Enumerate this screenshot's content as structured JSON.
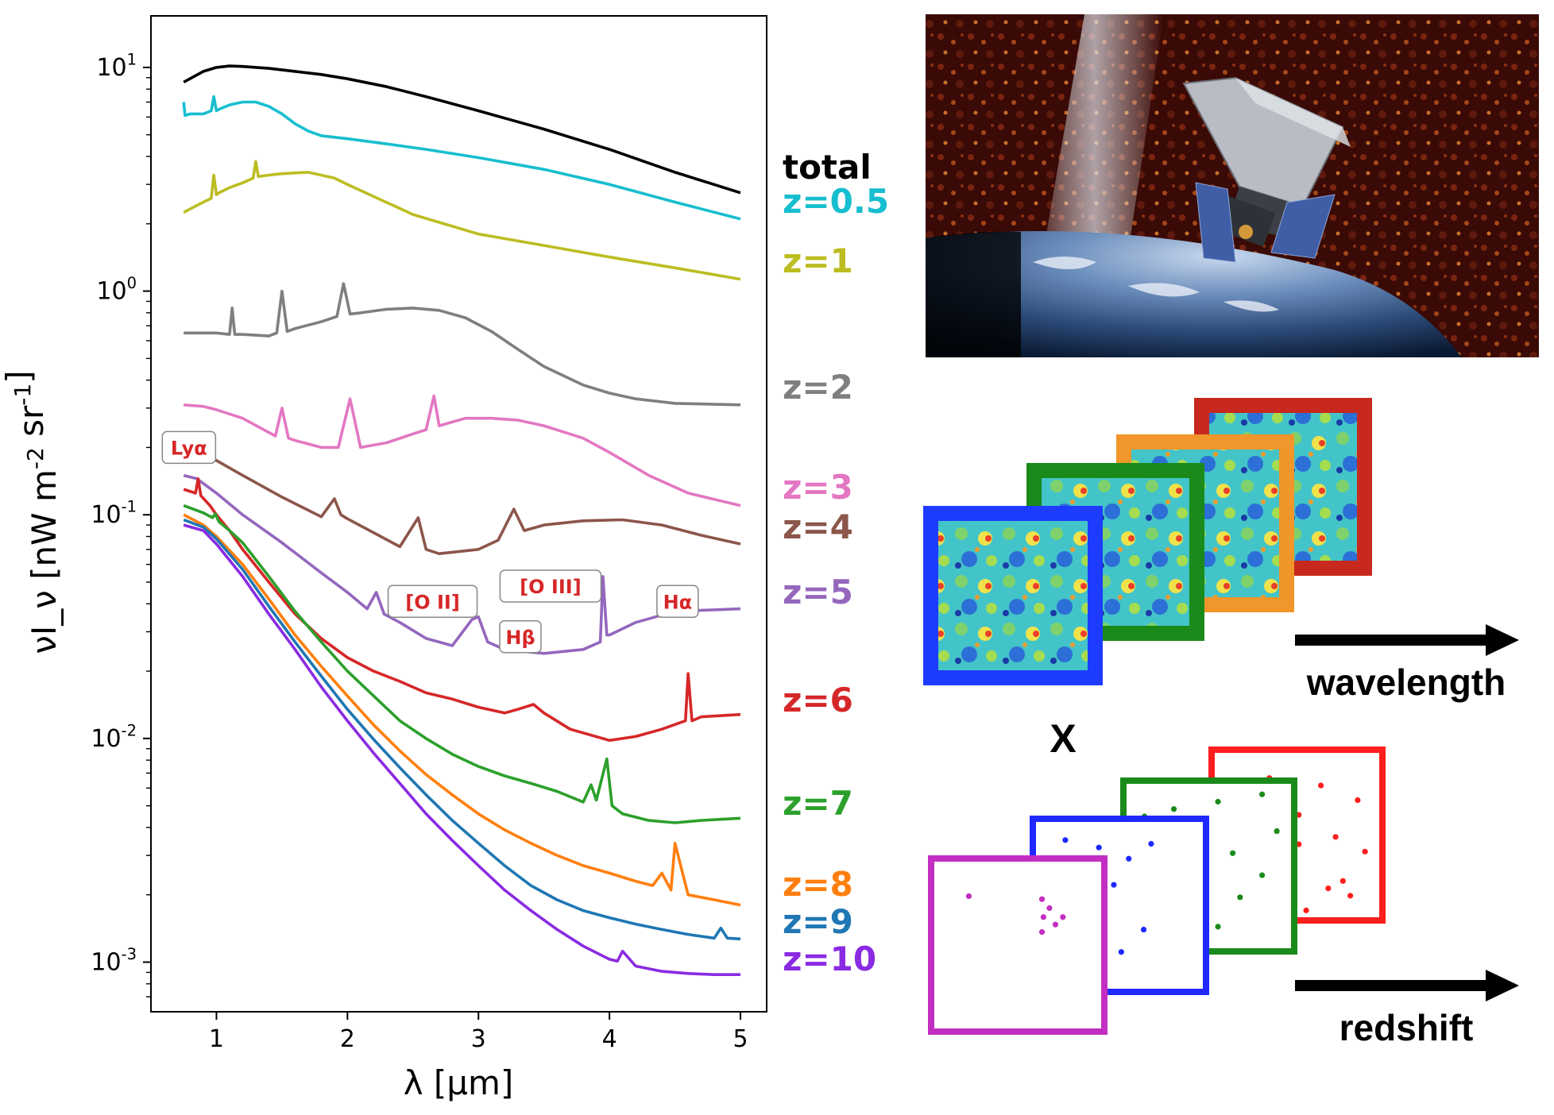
{
  "chart_data": {
    "type": "line",
    "xlabel": "λ [μm]",
    "ylabel": "νI_ν [nW m^-2 sr^-1]",
    "xlim": [
      0.5,
      5.2
    ],
    "ylim": [
      0.0006,
      17
    ],
    "yscale": "log",
    "xticks": [
      1,
      2,
      3,
      4,
      5
    ],
    "yticks": [
      {
        "value": 10,
        "label": "10^1"
      },
      {
        "value": 1,
        "label": "10^0"
      },
      {
        "value": 0.1,
        "label": "10^-1"
      },
      {
        "value": 0.01,
        "label": "10^-2"
      },
      {
        "value": 0.001,
        "label": "10^-3"
      }
    ],
    "series": [
      {
        "name": "total",
        "color": "#000000",
        "x": [
          0.75,
          0.9,
          1.0,
          1.1,
          1.2,
          1.4,
          1.6,
          1.8,
          2.0,
          2.3,
          2.6,
          3.0,
          3.5,
          4.0,
          4.5,
          5.0
        ],
        "y": [
          8.6,
          9.6,
          10.0,
          10.15,
          10.1,
          9.9,
          9.6,
          9.3,
          8.9,
          8.2,
          7.4,
          6.4,
          5.3,
          4.3,
          3.4,
          2.75
        ]
      },
      {
        "name": "z=0.5",
        "color": "#17becf",
        "x": [
          0.75,
          0.76,
          0.8,
          0.9,
          0.96,
          0.98,
          1.0,
          1.02,
          1.1,
          1.2,
          1.3,
          1.4,
          1.5,
          1.6,
          1.7,
          1.8,
          2.0,
          2.3,
          2.6,
          3.0,
          3.5,
          4.0,
          4.5,
          5.0
        ],
        "y": [
          7.0,
          6.1,
          6.2,
          6.2,
          6.4,
          7.4,
          6.4,
          6.5,
          6.8,
          7.0,
          7.0,
          6.7,
          6.2,
          5.6,
          5.2,
          4.95,
          4.8,
          4.55,
          4.3,
          3.95,
          3.5,
          3.0,
          2.5,
          2.1
        ]
      },
      {
        "name": "z=1",
        "color": "#bcbd22",
        "x": [
          0.75,
          0.9,
          0.96,
          0.98,
          1.0,
          1.02,
          1.1,
          1.2,
          1.28,
          1.3,
          1.32,
          1.4,
          1.5,
          1.7,
          1.9,
          2.0,
          2.2,
          2.5,
          3.0,
          3.5,
          4.0,
          4.5,
          5.0
        ],
        "y": [
          2.25,
          2.5,
          2.6,
          3.3,
          2.7,
          2.75,
          2.9,
          3.05,
          3.2,
          3.8,
          3.25,
          3.3,
          3.35,
          3.4,
          3.2,
          3.0,
          2.65,
          2.2,
          1.8,
          1.6,
          1.42,
          1.27,
          1.13
        ]
      },
      {
        "name": "z=2",
        "color": "#7f7f7f",
        "x": [
          0.75,
          1.0,
          1.1,
          1.12,
          1.14,
          1.2,
          1.4,
          1.46,
          1.5,
          1.54,
          1.6,
          1.8,
          1.92,
          1.97,
          2.02,
          2.1,
          2.3,
          2.5,
          2.7,
          2.9,
          3.1,
          3.3,
          3.5,
          3.8,
          4.0,
          4.2,
          4.5,
          5.0
        ],
        "y": [
          0.65,
          0.65,
          0.64,
          0.84,
          0.64,
          0.64,
          0.63,
          0.65,
          1.0,
          0.66,
          0.68,
          0.73,
          0.77,
          1.08,
          0.79,
          0.8,
          0.83,
          0.84,
          0.82,
          0.76,
          0.66,
          0.55,
          0.46,
          0.38,
          0.35,
          0.33,
          0.315,
          0.31
        ]
      },
      {
        "name": "z=3",
        "color": "#e377c2",
        "x": [
          0.75,
          0.9,
          1.0,
          1.2,
          1.45,
          1.5,
          1.55,
          1.6,
          1.8,
          1.93,
          2.02,
          2.1,
          2.3,
          2.5,
          2.6,
          2.66,
          2.7,
          2.9,
          3.1,
          3.3,
          3.5,
          3.8,
          4.0,
          4.3,
          4.6,
          5.0
        ],
        "y": [
          0.31,
          0.305,
          0.295,
          0.27,
          0.225,
          0.3,
          0.22,
          0.215,
          0.2,
          0.2,
          0.33,
          0.2,
          0.21,
          0.23,
          0.24,
          0.34,
          0.25,
          0.27,
          0.27,
          0.265,
          0.25,
          0.22,
          0.19,
          0.15,
          0.125,
          0.11
        ]
      },
      {
        "name": "z=4",
        "color": "#8c564b",
        "x": [
          0.75,
          0.85,
          1.0,
          1.2,
          1.5,
          1.8,
          1.9,
          1.95,
          2.0,
          2.4,
          2.54,
          2.6,
          2.7,
          3.0,
          3.15,
          3.27,
          3.35,
          3.5,
          3.8,
          4.1,
          4.4,
          4.7,
          5.0
        ],
        "y": [
          0.2,
          0.19,
          0.175,
          0.15,
          0.12,
          0.098,
          0.118,
          0.1,
          0.096,
          0.072,
          0.097,
          0.07,
          0.067,
          0.07,
          0.077,
          0.106,
          0.085,
          0.09,
          0.094,
          0.095,
          0.09,
          0.081,
          0.074
        ]
      },
      {
        "name": "z=5",
        "color": "#9467bd",
        "x": [
          0.75,
          0.85,
          1.0,
          1.2,
          1.5,
          1.8,
          2.0,
          2.15,
          2.22,
          2.28,
          2.4,
          2.6,
          2.8,
          2.95,
          3.0,
          3.07,
          3.2,
          3.5,
          3.8,
          3.93,
          3.95,
          3.98,
          4.0,
          4.2,
          4.5,
          5.0
        ],
        "y": [
          0.15,
          0.145,
          0.125,
          0.1,
          0.075,
          0.055,
          0.045,
          0.038,
          0.045,
          0.036,
          0.033,
          0.028,
          0.026,
          0.034,
          0.035,
          0.027,
          0.025,
          0.024,
          0.025,
          0.027,
          0.053,
          0.029,
          0.029,
          0.033,
          0.037,
          0.038
        ]
      },
      {
        "name": "z=6",
        "color": "#d62728",
        "x": [
          0.75,
          0.84,
          0.86,
          0.88,
          0.95,
          1.0,
          1.1,
          1.2,
          1.4,
          1.6,
          1.8,
          2.0,
          2.2,
          2.4,
          2.6,
          2.8,
          3.0,
          3.2,
          3.3,
          3.42,
          3.5,
          3.7,
          4.0,
          4.2,
          4.4,
          4.58,
          4.6,
          4.63,
          4.7,
          5.0
        ],
        "y": [
          0.13,
          0.125,
          0.145,
          0.122,
          0.11,
          0.1,
          0.085,
          0.07,
          0.05,
          0.036,
          0.028,
          0.023,
          0.02,
          0.018,
          0.016,
          0.015,
          0.0138,
          0.013,
          0.0135,
          0.0142,
          0.013,
          0.011,
          0.0098,
          0.0102,
          0.011,
          0.012,
          0.0195,
          0.012,
          0.0125,
          0.0128
        ]
      },
      {
        "name": "z=7",
        "color": "#2ca02c",
        "x": [
          0.75,
          0.9,
          0.97,
          0.99,
          1.02,
          1.1,
          1.2,
          1.4,
          1.6,
          1.8,
          2.0,
          2.2,
          2.4,
          2.6,
          2.8,
          3.0,
          3.2,
          3.4,
          3.6,
          3.8,
          3.86,
          3.9,
          3.98,
          4.02,
          4.1,
          4.3,
          4.5,
          4.7,
          5.0
        ],
        "y": [
          0.11,
          0.102,
          0.097,
          0.101,
          0.093,
          0.085,
          0.075,
          0.053,
          0.037,
          0.027,
          0.02,
          0.0155,
          0.012,
          0.01,
          0.0085,
          0.0075,
          0.0068,
          0.0063,
          0.0058,
          0.0052,
          0.0062,
          0.0053,
          0.0081,
          0.005,
          0.0046,
          0.0043,
          0.0042,
          0.0043,
          0.0044
        ]
      },
      {
        "name": "z=8",
        "color": "#ff7f0e",
        "x": [
          0.75,
          0.9,
          1.0,
          1.2,
          1.4,
          1.6,
          1.8,
          2.0,
          2.2,
          2.4,
          2.6,
          2.8,
          3.0,
          3.2,
          3.4,
          3.6,
          3.8,
          4.0,
          4.2,
          4.33,
          4.4,
          4.47,
          4.5,
          4.6,
          4.8,
          5.0
        ],
        "y": [
          0.1,
          0.09,
          0.08,
          0.06,
          0.042,
          0.029,
          0.021,
          0.0155,
          0.0115,
          0.0088,
          0.0069,
          0.0056,
          0.0046,
          0.0039,
          0.0034,
          0.003,
          0.0027,
          0.0025,
          0.0023,
          0.0022,
          0.0025,
          0.0021,
          0.0034,
          0.002,
          0.0019,
          0.0018
        ]
      },
      {
        "name": "z=9",
        "color": "#1f77b4",
        "x": [
          0.75,
          0.9,
          1.0,
          1.2,
          1.4,
          1.6,
          1.8,
          2.0,
          2.2,
          2.4,
          2.6,
          2.8,
          3.0,
          3.2,
          3.4,
          3.6,
          3.8,
          4.0,
          4.2,
          4.4,
          4.6,
          4.8,
          4.85,
          4.9,
          5.0
        ],
        "y": [
          0.095,
          0.088,
          0.078,
          0.057,
          0.039,
          0.027,
          0.019,
          0.0135,
          0.0099,
          0.0074,
          0.0056,
          0.0043,
          0.0034,
          0.0027,
          0.0022,
          0.0019,
          0.0017,
          0.00158,
          0.00148,
          0.0014,
          0.00133,
          0.00128,
          0.00142,
          0.00128,
          0.00127
        ]
      },
      {
        "name": "z=10",
        "color": "#8a2be2",
        "x": [
          0.75,
          0.9,
          1.0,
          1.2,
          1.4,
          1.6,
          1.8,
          2.0,
          2.2,
          2.4,
          2.6,
          2.8,
          3.0,
          3.2,
          3.4,
          3.6,
          3.8,
          4.0,
          4.06,
          4.1,
          4.2,
          4.4,
          4.6,
          4.8,
          5.0
        ],
        "y": [
          0.09,
          0.085,
          0.074,
          0.053,
          0.036,
          0.025,
          0.017,
          0.012,
          0.0086,
          0.0063,
          0.0046,
          0.0035,
          0.0027,
          0.0021,
          0.0017,
          0.0014,
          0.00118,
          0.00103,
          0.00101,
          0.00112,
          0.00096,
          0.00091,
          0.00089,
          0.00088,
          0.00088
        ]
      }
    ],
    "annotations": [
      {
        "text": "Lyα",
        "x": 0.79,
        "y": 0.2
      },
      {
        "text": "[O II]",
        "x": 2.65,
        "y": 0.041
      },
      {
        "text": "[O III]",
        "x": 3.55,
        "y": 0.048
      },
      {
        "text": "Hβ",
        "x": 3.32,
        "y": 0.0285
      },
      {
        "text": "Hα",
        "x": 4.52,
        "y": 0.041
      }
    ]
  },
  "figure": {
    "x_symbol": "X",
    "wavelength_label": "wavelength",
    "redshift_label": "redshift",
    "frame_colors": [
      "#1e3cff",
      "#1a8a1a",
      "#f0962a",
      "#c8281e"
    ],
    "point_frame_colors": [
      "#c22ec2",
      "#1e28ff",
      "#1a8a1a",
      "#ff1e1e"
    ]
  }
}
